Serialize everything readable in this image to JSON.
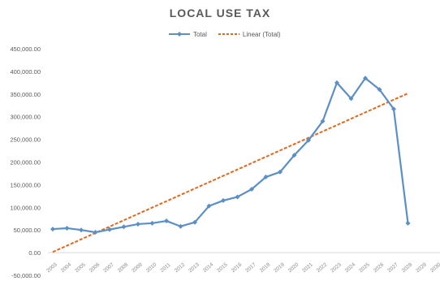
{
  "chart_data": {
    "type": "line",
    "title": "LOCAL USE TAX",
    "categories": [
      "2003",
      "2004",
      "2005",
      "2006",
      "2007",
      "2008",
      "2009",
      "2010",
      "2011",
      "2012",
      "2013",
      "2014",
      "2015",
      "2016",
      "2017",
      "2018",
      "2019",
      "2020",
      "2021",
      "2022",
      "2023",
      "2024",
      "2025",
      "2026",
      "2027",
      "2028"
    ],
    "series": [
      {
        "name": "Total",
        "color": "#5b8fc6",
        "values": [
          52000,
          54000,
          50000,
          45000,
          51000,
          57000,
          63000,
          65000,
          70000,
          58000,
          67000,
          103000,
          115000,
          123000,
          140000,
          167000,
          178000,
          215000,
          248000,
          290000,
          375000,
          340000,
          385000,
          360000,
          317000,
          65000
        ]
      },
      {
        "name": "Linear (Total)",
        "color": "#e0691f",
        "style": "dashed",
        "trendline": true,
        "values": [
          1500,
          15500,
          29500,
          43500,
          57500,
          71500,
          85500,
          99500,
          113500,
          127500,
          141500,
          155500,
          169500,
          183500,
          197500,
          211500,
          225500,
          239500,
          253500,
          267500,
          281500,
          295500,
          309500,
          323500,
          337500,
          351500
        ]
      }
    ],
    "x_tick_labels": [
      "2003",
      "2004",
      "2005",
      "2006",
      "2007",
      "2008",
      "2009",
      "2010",
      "2011",
      "2012",
      "2013",
      "2014",
      "2015",
      "2016",
      "2017",
      "2018",
      "2019",
      "2020",
      "2021",
      "2022",
      "2023",
      "2024",
      "2025",
      "2026",
      "2027",
      "2028",
      "2029",
      "2030"
    ],
    "y_tick_labels": [
      "450,000.00",
      "400,000.00",
      "350,000.00",
      "300,000.00",
      "250,000.00",
      "200,000.00",
      "150,000.00",
      "100,000.00",
      "50,000.00",
      "0.00",
      "-50,000.00"
    ],
    "ylim": [
      -50000,
      450000
    ],
    "grid": false,
    "legend_position": "top"
  }
}
